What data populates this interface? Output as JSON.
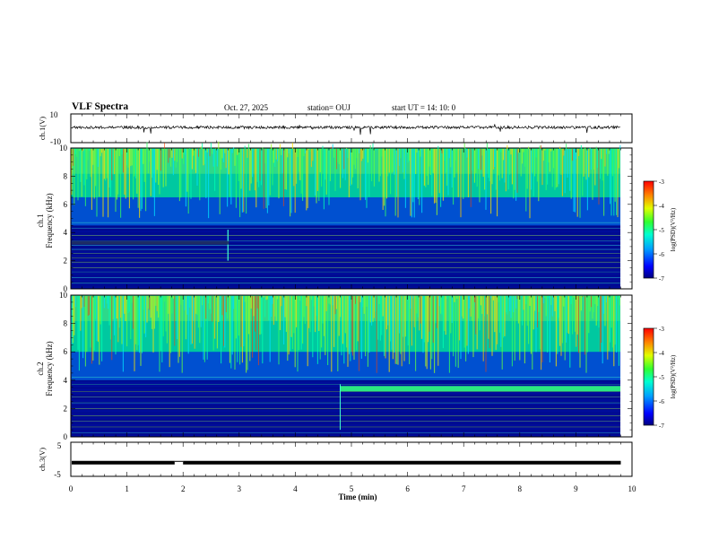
{
  "header": {
    "title": "VLF Spectra",
    "date": "Oct. 27, 2025",
    "station": "station= OUJ",
    "start": "start  UT  =   14: 10: 0"
  },
  "chart_data": [
    {
      "type": "line",
      "name": "ch1-waveform",
      "ylabel": "ch.1(V)",
      "ylim": [
        -10,
        10
      ],
      "yticks": [
        "10",
        "-10"
      ],
      "baseline": 0,
      "xlim": [
        0,
        10
      ]
    },
    {
      "type": "heatmap",
      "name": "ch1-spectrogram",
      "ylabel_channel": "ch.1",
      "ylabel": "Frequency (kHz)",
      "ylim": [
        0,
        10
      ],
      "yticks": [
        "0",
        "2",
        "4",
        "6",
        "8",
        "10"
      ],
      "xlim": [
        0,
        9.8
      ],
      "colorbar": {
        "label": "log(PSD)(V²/Hz)",
        "range": [
          -7,
          -3
        ],
        "ticks": [
          "-3",
          "-4",
          "-5",
          "-6",
          "-7"
        ]
      },
      "lines_khz": [
        0.4,
        0.8,
        1.2,
        1.5,
        1.9,
        2.2,
        2.5,
        2.8,
        3.1,
        3.4,
        3.8,
        4.3,
        4.7
      ],
      "noise_floor_khz": 4.5,
      "step_change_min": 2.8
    },
    {
      "type": "heatmap",
      "name": "ch2-spectrogram",
      "ylabel_channel": "ch.2",
      "ylabel": "Frequency (kHz)",
      "ylim": [
        0,
        10
      ],
      "yticks": [
        "0",
        "2",
        "4",
        "6",
        "8",
        "10"
      ],
      "xlim": [
        0,
        9.8
      ],
      "colorbar": {
        "label": "log(PSD)(V²/Hz)",
        "range": [
          -7,
          -3
        ],
        "ticks": [
          "-3",
          "-4",
          "-5",
          "-6",
          "-7"
        ]
      },
      "lines_khz": [
        0.3,
        0.7,
        1.1,
        1.5,
        2.0,
        2.4,
        2.8,
        3.2,
        3.7,
        4.2
      ],
      "band_khz": 3.4,
      "band_start_min": 4.8,
      "noise_floor_khz": 4.0
    },
    {
      "type": "line",
      "name": "ch3-trace",
      "ylabel": "ch.3(V)",
      "ylim": [
        -5,
        5
      ],
      "yticks": [
        "5",
        "-5"
      ],
      "level": -1,
      "gap_min": [
        1.85,
        2.0
      ],
      "xlim": [
        0,
        9.8
      ]
    }
  ],
  "xaxis": {
    "label": "Time  (min)",
    "ticks": [
      "0",
      "1",
      "2",
      "3",
      "4",
      "5",
      "6",
      "7",
      "8",
      "9",
      "10"
    ],
    "range": [
      0,
      10
    ]
  }
}
